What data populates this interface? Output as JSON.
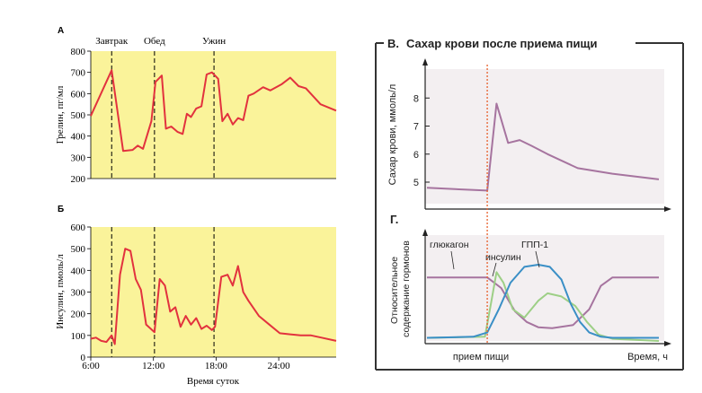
{
  "chart_data": [
    {
      "id": "A",
      "type": "line",
      "panel_letter": "А",
      "title": "",
      "xlabel": "",
      "ylabel": "Грелин, пг/мл",
      "ylim": [
        200,
        800
      ],
      "yticks": [
        200,
        300,
        400,
        500,
        600,
        700,
        800
      ],
      "xlim": [
        6,
        29.5
      ],
      "events": [
        {
          "label": "Завтрак",
          "x": 8
        },
        {
          "label": "Обед",
          "x": 12.1
        },
        {
          "label": "Ужин",
          "x": 17.8
        }
      ],
      "series": [
        {
          "x": [
            6,
            8,
            9.1,
            10,
            10.5,
            11,
            11.8,
            12.2,
            12.8,
            13.2,
            13.7,
            14.3,
            14.8,
            15.2,
            15.6,
            16.1,
            16.6,
            17.1,
            17.6,
            18.2,
            18.6,
            19.1,
            19.6,
            20.1,
            20.6,
            21.1,
            21.6,
            22.5,
            23.2,
            24.3,
            25.1,
            25.9,
            26.6,
            28,
            29.5
          ],
          "values": [
            495,
            710,
            330,
            335,
            355,
            340,
            470,
            655,
            685,
            435,
            445,
            420,
            410,
            505,
            490,
            530,
            540,
            690,
            700,
            670,
            470,
            505,
            455,
            485,
            475,
            590,
            600,
            630,
            615,
            645,
            675,
            635,
            625,
            550,
            520
          ]
        }
      ]
    },
    {
      "id": "B",
      "type": "line",
      "panel_letter": "Б",
      "title": "",
      "xlabel": "Время суток",
      "ylabel": "Инсулин, пмоль/л",
      "ylim": [
        0,
        600
      ],
      "yticks": [
        0,
        100,
        200,
        300,
        400,
        500,
        600
      ],
      "xlim": [
        6,
        29.5
      ],
      "xticks": [
        {
          "v": 6,
          "label": "6:00"
        },
        {
          "v": 12,
          "label": "12:00"
        },
        {
          "v": 18,
          "label": "18:00"
        },
        {
          "v": 24,
          "label": "24:00"
        }
      ],
      "events": [
        {
          "x": 8
        },
        {
          "x": 12.1
        },
        {
          "x": 17.8
        }
      ],
      "series": [
        {
          "x": [
            6,
            6.5,
            7,
            7.5,
            8,
            8.3,
            8.8,
            9.3,
            9.8,
            10.3,
            10.8,
            11.3,
            12.1,
            12.6,
            13.1,
            13.6,
            14.1,
            14.6,
            15.1,
            15.6,
            16.1,
            16.6,
            17.1,
            17.6,
            17.9,
            18.5,
            19.1,
            19.6,
            20.1,
            20.6,
            21.1,
            22.1,
            23.1,
            24.1,
            25.1,
            26.1,
            27.1,
            28.1,
            29.5
          ],
          "values": [
            85,
            90,
            75,
            70,
            100,
            60,
            380,
            500,
            490,
            360,
            310,
            150,
            115,
            360,
            330,
            210,
            230,
            140,
            190,
            150,
            180,
            130,
            145,
            125,
            140,
            370,
            380,
            330,
            420,
            300,
            260,
            190,
            150,
            110,
            105,
            100,
            100,
            90,
            75
          ]
        }
      ]
    },
    {
      "id": "C",
      "type": "line",
      "panel_letter": "В.",
      "title": "Сахар крови после приема пищи",
      "xlabel": "",
      "ylabel": "Сахар крови, ммоль/л",
      "ylim": [
        4.2,
        9
      ],
      "yticks": [
        5,
        6,
        7,
        8
      ],
      "xlim": [
        0,
        10
      ],
      "meal_x": 2.6,
      "series": [
        {
          "color": "#a6749f",
          "x": [
            0,
            2.6,
            3.0,
            3.5,
            4.0,
            4.5,
            5.2,
            6.5,
            8.0,
            10
          ],
          "values": [
            4.8,
            4.7,
            7.8,
            6.4,
            6.5,
            6.3,
            6.0,
            5.5,
            5.3,
            5.1
          ]
        }
      ]
    },
    {
      "id": "D",
      "type": "line",
      "panel_letter": "Г.",
      "title": "",
      "xlabel": "Время, ч",
      "ylabel": "Относительное содержание гормонов",
      "meal_label": "прием пищи",
      "ylim": [
        0,
        1
      ],
      "xlim": [
        0,
        10
      ],
      "meal_x": 2.6,
      "series": [
        {
          "name": "глюкагон",
          "color": "#a6749f",
          "x": [
            0,
            2.6,
            3.2,
            3.8,
            4.3,
            4.8,
            5.4,
            6.3,
            7.0,
            7.5,
            8.0,
            10
          ],
          "values": [
            0.6,
            0.6,
            0.5,
            0.28,
            0.18,
            0.13,
            0.12,
            0.15,
            0.3,
            0.52,
            0.6,
            0.6
          ]
        },
        {
          "name": "инсулин",
          "color": "#9dcf86",
          "x": [
            0,
            2.5,
            2.8,
            3.0,
            3.3,
            3.7,
            4.2,
            4.8,
            5.2,
            5.8,
            6.4,
            6.9,
            7.4,
            8.0,
            10
          ],
          "values": [
            0.03,
            0.04,
            0.4,
            0.65,
            0.55,
            0.3,
            0.22,
            0.38,
            0.45,
            0.42,
            0.33,
            0.18,
            0.06,
            0.02,
            0.0
          ]
        },
        {
          "name": "ГПП-1",
          "color": "#3a8fc6",
          "x": [
            0,
            2.0,
            2.6,
            3.1,
            3.6,
            4.2,
            4.8,
            5.3,
            5.8,
            6.2,
            6.6,
            7.0,
            7.5,
            8.0,
            10
          ],
          "values": [
            0.03,
            0.04,
            0.08,
            0.3,
            0.55,
            0.7,
            0.72,
            0.7,
            0.58,
            0.35,
            0.18,
            0.08,
            0.04,
            0.03,
            0.03
          ]
        }
      ]
    }
  ]
}
